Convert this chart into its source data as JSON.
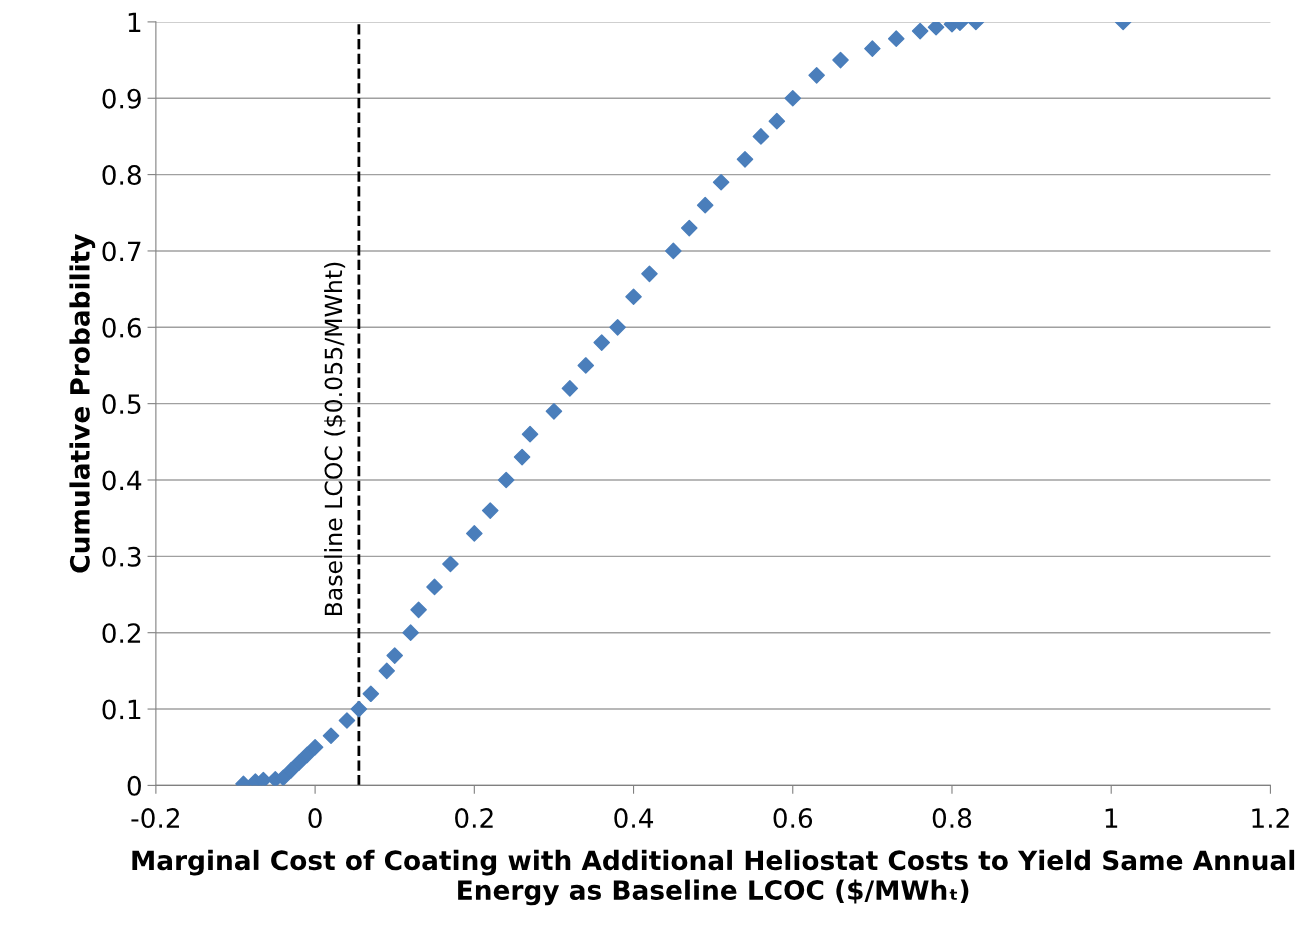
{
  "chart_data": {
    "type": "scatter",
    "xlabel": "Marginal Cost of Coating with Additional Heliostat Costs to Yield Same Annual Energy as Baseline LCOC ($/MWhₜ)",
    "ylabel": "Cumulative Probability",
    "x": [
      -0.09,
      -0.075,
      -0.065,
      -0.05,
      -0.04,
      -0.03,
      -0.02,
      -0.01,
      0,
      0.02,
      0.04,
      0.055,
      0.07,
      0.09,
      0.1,
      0.12,
      0.13,
      0.15,
      0.17,
      0.2,
      0.22,
      0.24,
      0.26,
      0.27,
      0.3,
      0.32,
      0.34,
      0.36,
      0.38,
      0.4,
      0.42,
      0.45,
      0.47,
      0.49,
      0.51,
      0.54,
      0.56,
      0.58,
      0.6,
      0.63,
      0.66,
      0.7,
      0.73,
      0.76,
      0.78,
      0.8,
      0.81,
      0.83,
      1.015
    ],
    "series": [
      {
        "color": "#4a7ebb",
        "values": [
          0.002,
          0.005,
          0.007,
          0.008,
          0.01,
          0.02,
          0.03,
          0.04,
          0.05,
          0.065,
          0.085,
          0.1,
          0.12,
          0.15,
          0.17,
          0.2,
          0.23,
          0.26,
          0.29,
          0.33,
          0.36,
          0.4,
          0.43,
          0.46,
          0.49,
          0.52,
          0.55,
          0.58,
          0.6,
          0.64,
          0.67,
          0.7,
          0.73,
          0.76,
          0.79,
          0.82,
          0.85,
          0.87,
          0.9,
          0.93,
          0.95,
          0.965,
          0.978,
          0.988,
          0.993,
          0.997,
          0.999,
          1.0,
          1.0
        ]
      }
    ],
    "marker": "diamond",
    "xlim": [
      -0.2,
      1.2
    ],
    "xticks": [
      -0.2,
      0,
      0.2,
      0.4,
      0.6,
      0.8,
      1,
      1.2
    ],
    "ylim": [
      0,
      1
    ],
    "yticks": [
      0,
      0.1,
      0.2,
      0.3,
      0.4,
      0.5,
      0.6,
      0.7,
      0.8,
      0.9,
      1
    ],
    "grid": "y",
    "ref_lines": [
      {
        "axis": "x",
        "value": 0.055,
        "label": "Baseline LCOC ($0.055/MWht)",
        "color": "#000000",
        "line_style": "dashed"
      }
    ]
  }
}
